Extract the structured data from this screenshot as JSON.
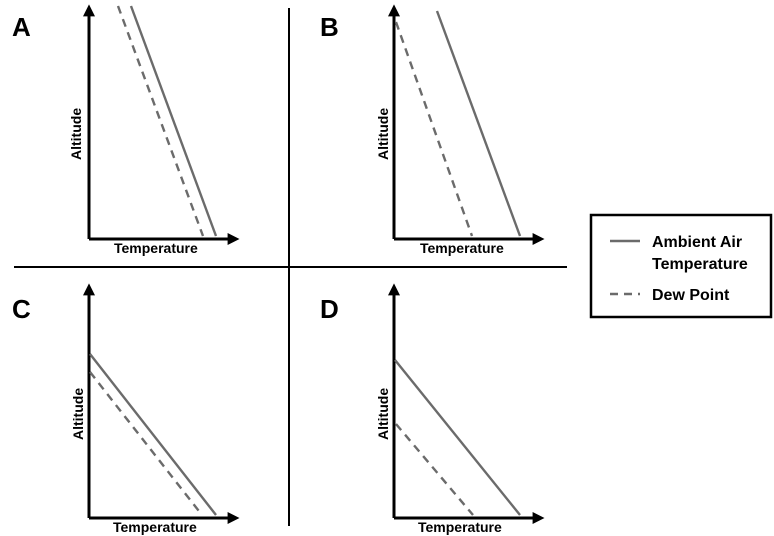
{
  "panels": [
    {
      "id": "A",
      "xlabel": "Temperature",
      "ylabel": "Altitude"
    },
    {
      "id": "B",
      "xlabel": "Temperature",
      "ylabel": "Altitude"
    },
    {
      "id": "C",
      "xlabel": "Temperature",
      "ylabel": "Altitude"
    },
    {
      "id": "D",
      "xlabel": "Temperature",
      "ylabel": "Altitude"
    }
  ],
  "legend": {
    "ambient_line1": "Ambient Air",
    "ambient_line2": "Temperature",
    "dew": "Dew Point"
  },
  "colors": {
    "lines": "#6b6b6b",
    "axes": "#000000"
  }
}
